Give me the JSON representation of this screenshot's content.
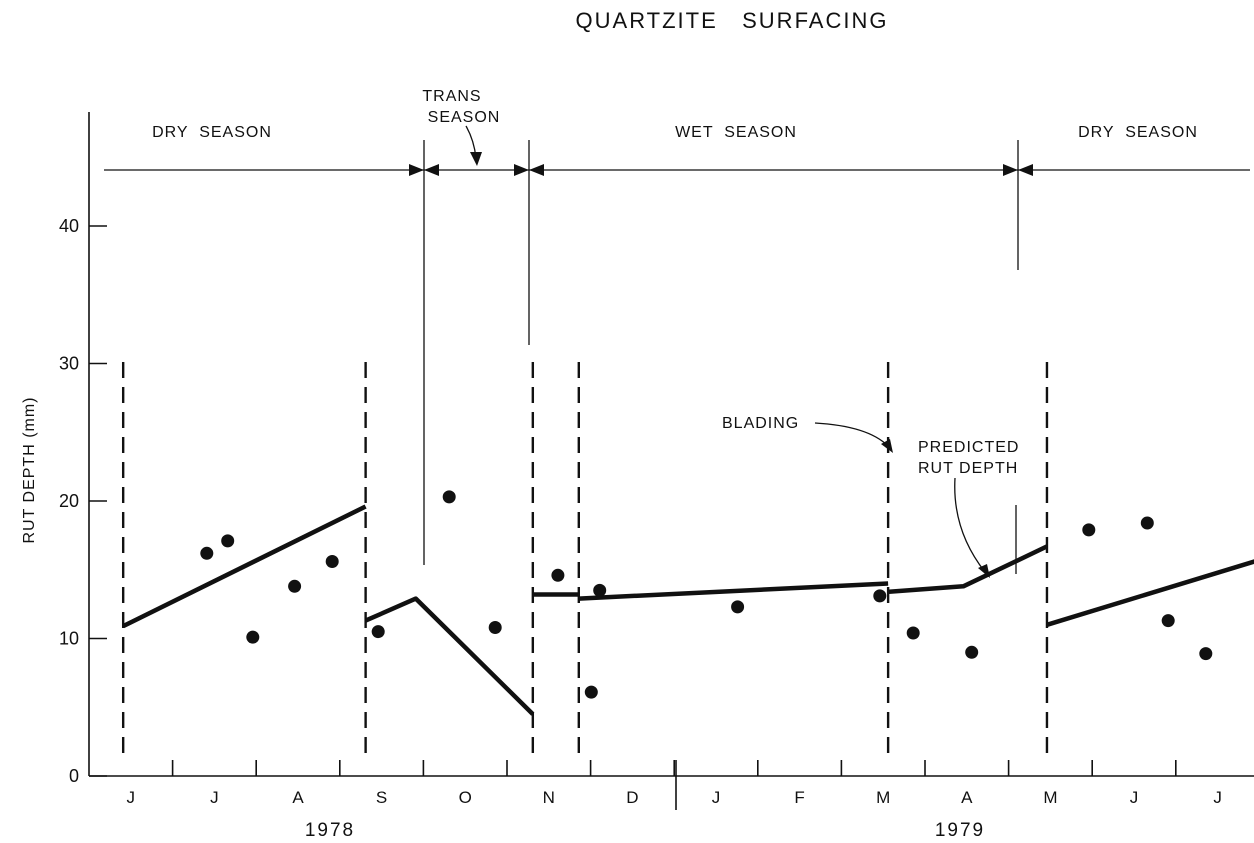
{
  "chart_data": {
    "type": "scatter",
    "title": "QUARTZITE   SURFACING",
    "ylabel": "RUT DEPTH (mm)",
    "xlabel": "",
    "ylim": [
      0,
      40
    ],
    "y_ticks": [
      "0",
      "10",
      "20",
      "30",
      "40"
    ],
    "x_ticks": [
      "J",
      "J",
      "A",
      "S",
      "O",
      "N",
      "D",
      "J",
      "F",
      "M",
      "A",
      "M",
      "J",
      "J"
    ],
    "x_years": [
      "1978",
      "1979"
    ],
    "grid": false,
    "seasons": [
      {
        "label": "DRY  SEASON"
      },
      {
        "label_line1": "TRANS",
        "label_line2": "SEASON"
      },
      {
        "label": "WET  SEASON"
      },
      {
        "label": "DRY  SEASON"
      }
    ],
    "annotations": {
      "blading": "BLADING",
      "predicted_line1": "PREDICTED",
      "predicted_line2": "RUT DEPTH"
    },
    "x_unit": "month index (0 = start of June 1978)",
    "blading_x": [
      0.05,
      2.95,
      4.95,
      5.5,
      9.2,
      11.1
    ],
    "series": [
      {
        "type": "scatter",
        "points": [
          [
            1.05,
            16.2
          ],
          [
            1.3,
            17.1
          ],
          [
            1.6,
            10.1
          ],
          [
            2.1,
            13.8
          ],
          [
            2.55,
            15.6
          ],
          [
            3.1,
            10.5
          ],
          [
            3.95,
            20.3
          ],
          [
            4.5,
            10.8
          ],
          [
            5.25,
            14.6
          ],
          [
            5.65,
            6.1
          ],
          [
            5.75,
            13.5
          ],
          [
            7.4,
            12.3
          ],
          [
            9.1,
            13.1
          ],
          [
            9.5,
            10.4
          ],
          [
            10.2,
            9.0
          ],
          [
            11.6,
            17.9
          ],
          [
            12.3,
            18.4
          ],
          [
            12.55,
            11.3
          ],
          [
            13.0,
            8.9
          ]
        ]
      },
      {
        "type": "line",
        "segments": [
          [
            [
              0.05,
              10.9
            ],
            [
              2.95,
              19.6
            ]
          ],
          [
            [
              2.95,
              11.3
            ],
            [
              3.55,
              12.9
            ],
            [
              4.95,
              4.5
            ]
          ],
          [
            [
              4.95,
              13.2
            ],
            [
              5.5,
              13.2
            ]
          ],
          [
            [
              5.5,
              12.9
            ],
            [
              9.2,
              14.0
            ]
          ],
          [
            [
              9.2,
              13.4
            ],
            [
              10.1,
              13.8
            ],
            [
              11.1,
              16.7
            ]
          ],
          [
            [
              11.1,
              11.0
            ],
            [
              13.85,
              16.1
            ]
          ]
        ]
      }
    ]
  }
}
